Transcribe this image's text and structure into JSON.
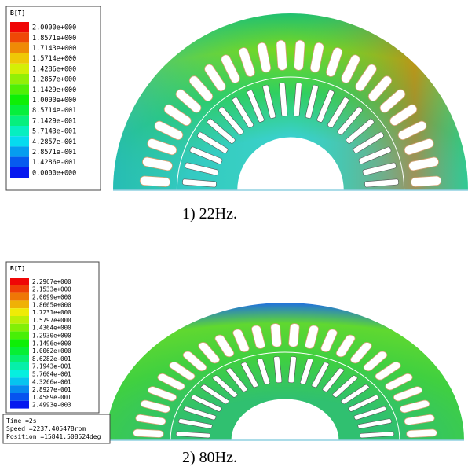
{
  "panels": [
    {
      "legend": {
        "title": "B[T]",
        "labels": [
          "2.0000e+000",
          "1.8571e+000",
          "1.7143e+000",
          "1.5714e+000",
          "1.4286e+000",
          "1.2857e+000",
          "1.1429e+000",
          "1.0000e+000",
          "8.5714e-001",
          "7.1429e-001",
          "5.7143e-001",
          "4.2857e-001",
          "2.8571e-001",
          "1.4286e-001",
          "0.0000e+000"
        ]
      },
      "caption": "1) 22Hz."
    },
    {
      "legend": {
        "title": "B[T]",
        "labels": [
          "2.2967e+000",
          "2.1533e+000",
          "2.0099e+000",
          "1.8665e+000",
          "1.7231e+000",
          "1.5797e+000",
          "1.4364e+000",
          "1.2930e+000",
          "1.1496e+000",
          "1.0062e+000",
          "8.6282e-001",
          "7.1943e-001",
          "5.7604e-001",
          "4.3266e-001",
          "2.8927e-001",
          "1.4589e-001",
          "2.4993e-003"
        ]
      },
      "info": [
        "Time =2s",
        "Speed =2237.405478rpm",
        "Position =15841.508524deg"
      ],
      "caption": "2) 80Hz."
    }
  ]
}
